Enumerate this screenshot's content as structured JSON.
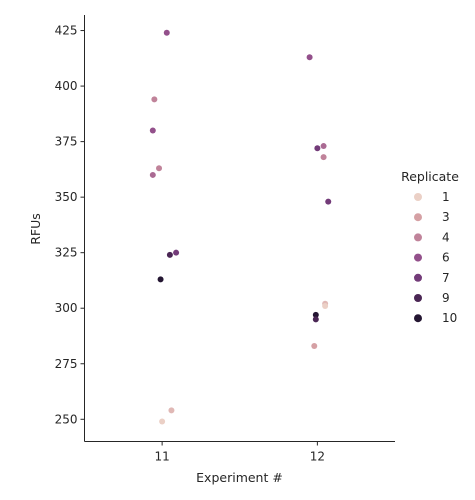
{
  "chart_data": {
    "type": "scatter",
    "title": "",
    "xlabel": "Experiment #",
    "ylabel": "RFUs",
    "categories": [
      "11",
      "12"
    ],
    "ylim": [
      240,
      432
    ],
    "yticks": [
      250,
      275,
      300,
      325,
      350,
      375,
      400,
      425
    ],
    "grid": false,
    "legend": {
      "title": "Replicate",
      "placement": "right",
      "entries": [
        {
          "label": "1",
          "color": "#ebd0c6"
        },
        {
          "label": "3",
          "color": "#d5a0a4"
        },
        {
          "label": "4",
          "color": "#c0839a"
        },
        {
          "label": "6",
          "color": "#93508b"
        },
        {
          "label": "7",
          "color": "#733b79"
        },
        {
          "label": "9",
          "color": "#4a2654"
        },
        {
          "label": "10",
          "color": "#241632"
        }
      ]
    },
    "points": [
      {
        "x": "11",
        "jitter": 0.03,
        "y": 424,
        "replicate": 6
      },
      {
        "x": "11",
        "jitter": -0.05,
        "y": 394,
        "replicate": 4
      },
      {
        "x": "11",
        "jitter": -0.06,
        "y": 380,
        "replicate": 6
      },
      {
        "x": "11",
        "jitter": -0.02,
        "y": 363,
        "replicate": 4
      },
      {
        "x": "11",
        "jitter": -0.06,
        "y": 360,
        "replicate": 5
      },
      {
        "x": "11",
        "jitter": 0.09,
        "y": 325,
        "replicate": 7
      },
      {
        "x": "11",
        "jitter": 0.05,
        "y": 324,
        "replicate": 9
      },
      {
        "x": "11",
        "jitter": -0.01,
        "y": 313,
        "replicate": 10
      },
      {
        "x": "11",
        "jitter": 0.06,
        "y": 254,
        "replicate": 2
      },
      {
        "x": "11",
        "jitter": 0.0,
        "y": 249,
        "replicate": 1
      },
      {
        "x": "12",
        "jitter": -0.05,
        "y": 413,
        "replicate": 6
      },
      {
        "x": "12",
        "jitter": 0.04,
        "y": 373,
        "replicate": 5
      },
      {
        "x": "12",
        "jitter": 0.0,
        "y": 372,
        "replicate": 7
      },
      {
        "x": "12",
        "jitter": 0.04,
        "y": 368,
        "replicate": 4
      },
      {
        "x": "12",
        "jitter": 0.07,
        "y": 348,
        "replicate": 7
      },
      {
        "x": "12",
        "jitter": 0.05,
        "y": 302,
        "replicate": 2
      },
      {
        "x": "12",
        "jitter": 0.05,
        "y": 301,
        "replicate": 1
      },
      {
        "x": "12",
        "jitter": -0.01,
        "y": 297,
        "replicate": 10
      },
      {
        "x": "12",
        "jitter": -0.01,
        "y": 295,
        "replicate": 9
      },
      {
        "x": "12",
        "jitter": -0.02,
        "y": 283,
        "replicate": 3
      }
    ]
  }
}
